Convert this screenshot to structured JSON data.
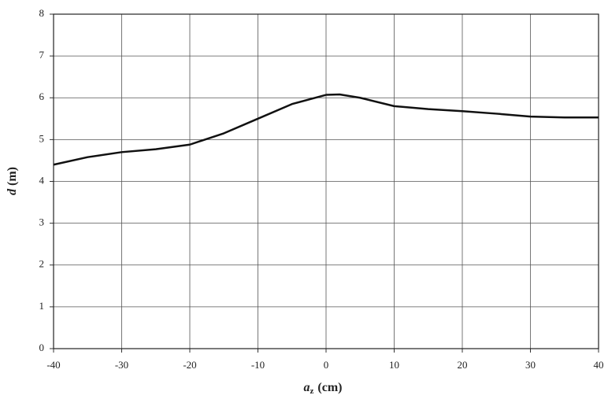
{
  "chart_data": {
    "type": "line",
    "x_label_parts": [
      "a",
      "z",
      "(cm)"
    ],
    "y_label_parts": [
      "d",
      "(m)"
    ],
    "x": [
      -40,
      -35,
      -30,
      -25,
      -20,
      -15,
      -10,
      -5,
      0,
      2,
      5,
      10,
      15,
      20,
      25,
      30,
      35,
      40
    ],
    "series": [
      {
        "color": "#111111",
        "values": [
          4.4,
          4.58,
          4.7,
          4.77,
          4.88,
          5.15,
          5.5,
          5.85,
          6.07,
          6.08,
          6.0,
          5.8,
          5.73,
          5.68,
          5.62,
          5.55,
          5.53,
          5.53
        ]
      }
    ],
    "xlim": [
      -40,
      40
    ],
    "xticks": [
      -40,
      -30,
      -20,
      -10,
      0,
      10,
      20,
      30,
      40
    ],
    "ylim": [
      0,
      8
    ],
    "yticks": [
      0,
      1,
      2,
      3,
      4,
      5,
      6,
      7,
      8
    ],
    "grid": true
  }
}
